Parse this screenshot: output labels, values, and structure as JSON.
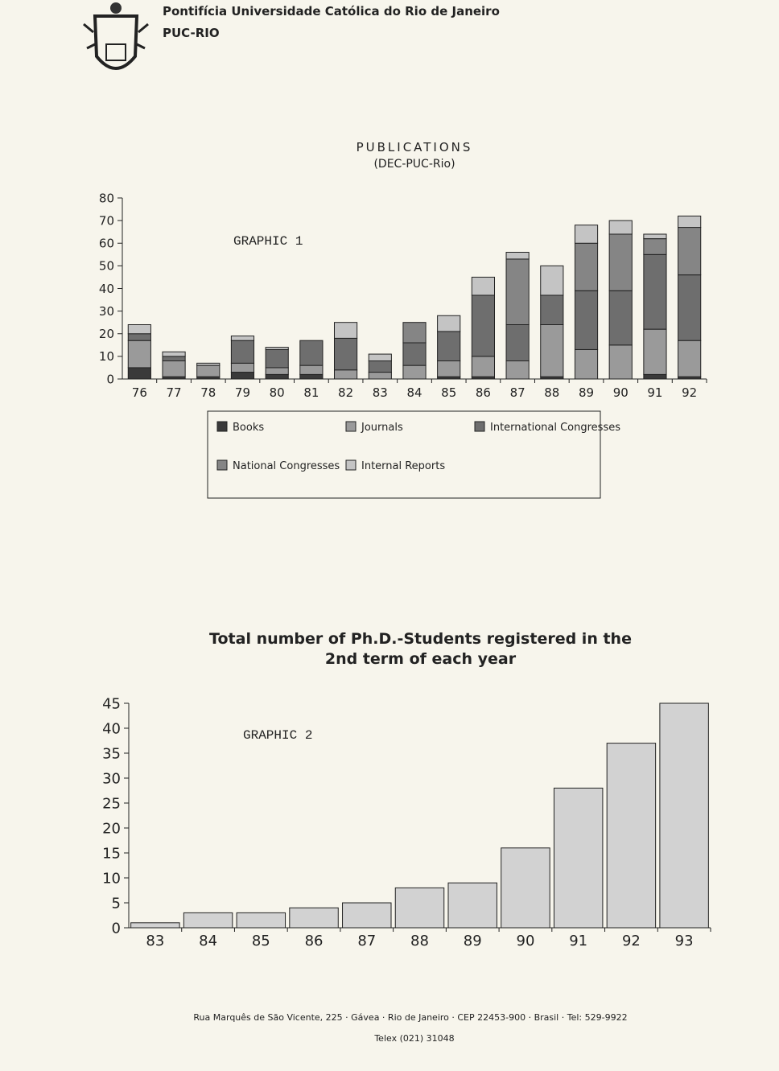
{
  "header": {
    "institution": "Pontifícia Universidade Católica do Rio de Janeiro",
    "short_name": "PUC-RIO"
  },
  "chart_data": [
    {
      "type": "bar",
      "stacked": true,
      "title": "PUBLICATIONS",
      "subtitle": "(DEC-PUC-Rio)",
      "annotation": "GRAPHIC 1",
      "categories": [
        "76",
        "77",
        "78",
        "79",
        "80",
        "81",
        "82",
        "83",
        "84",
        "85",
        "86",
        "87",
        "88",
        "89",
        "90",
        "91",
        "92"
      ],
      "series": [
        {
          "name": "Books",
          "color": "#3a3a3a",
          "values": [
            5,
            1,
            1,
            3,
            2,
            2,
            0,
            0,
            0,
            1,
            1,
            0,
            1,
            0,
            0,
            2,
            1
          ]
        },
        {
          "name": "Journals",
          "color": "#9a9a9a",
          "values": [
            12,
            7,
            5,
            4,
            3,
            4,
            4,
            3,
            6,
            7,
            9,
            8,
            23,
            13,
            15,
            20,
            16
          ]
        },
        {
          "name": "International Congresses",
          "color": "#6e6e6e",
          "values": [
            3,
            2,
            0,
            10,
            8,
            11,
            14,
            5,
            10,
            13,
            27,
            16,
            13,
            26,
            24,
            33,
            29
          ]
        },
        {
          "name": "National Congresses",
          "color": "#858585",
          "values": [
            0,
            0,
            0,
            0,
            0,
            0,
            0,
            0,
            9,
            0,
            0,
            29,
            0,
            21,
            25,
            7,
            21
          ]
        },
        {
          "name": "Internal Reports",
          "color": "#c4c4c4",
          "values": [
            4,
            2,
            1,
            2,
            1,
            0,
            7,
            3,
            0,
            7,
            8,
            3,
            13,
            8,
            6,
            2,
            5
          ]
        }
      ],
      "ylim": [
        0,
        80
      ],
      "yticks": [
        0,
        10,
        20,
        30,
        40,
        50,
        60,
        70,
        80
      ],
      "grid": false,
      "legend": "below"
    },
    {
      "type": "bar",
      "title": "Total number of Ph.D.-Students registered in the 2nd term of each year",
      "annotation": "GRAPHIC 2",
      "categories": [
        "83",
        "84",
        "85",
        "86",
        "87",
        "88",
        "89",
        "90",
        "91",
        "92",
        "93"
      ],
      "values": [
        1,
        3,
        3,
        4,
        5,
        8,
        9,
        16,
        28,
        37,
        45
      ],
      "color": "#d2d2d2",
      "ylim": [
        0,
        45
      ],
      "yticks": [
        0,
        5,
        10,
        15,
        20,
        25,
        30,
        35,
        40,
        45
      ],
      "grid": false
    }
  ],
  "footer": {
    "address": "Rua  Marquês de São Vicente, 225 · Gávea · Rio de Janeiro · CEP 22453-900 · Brasil · Tel: 529-9922",
    "telex": "Telex (021) 31048"
  }
}
